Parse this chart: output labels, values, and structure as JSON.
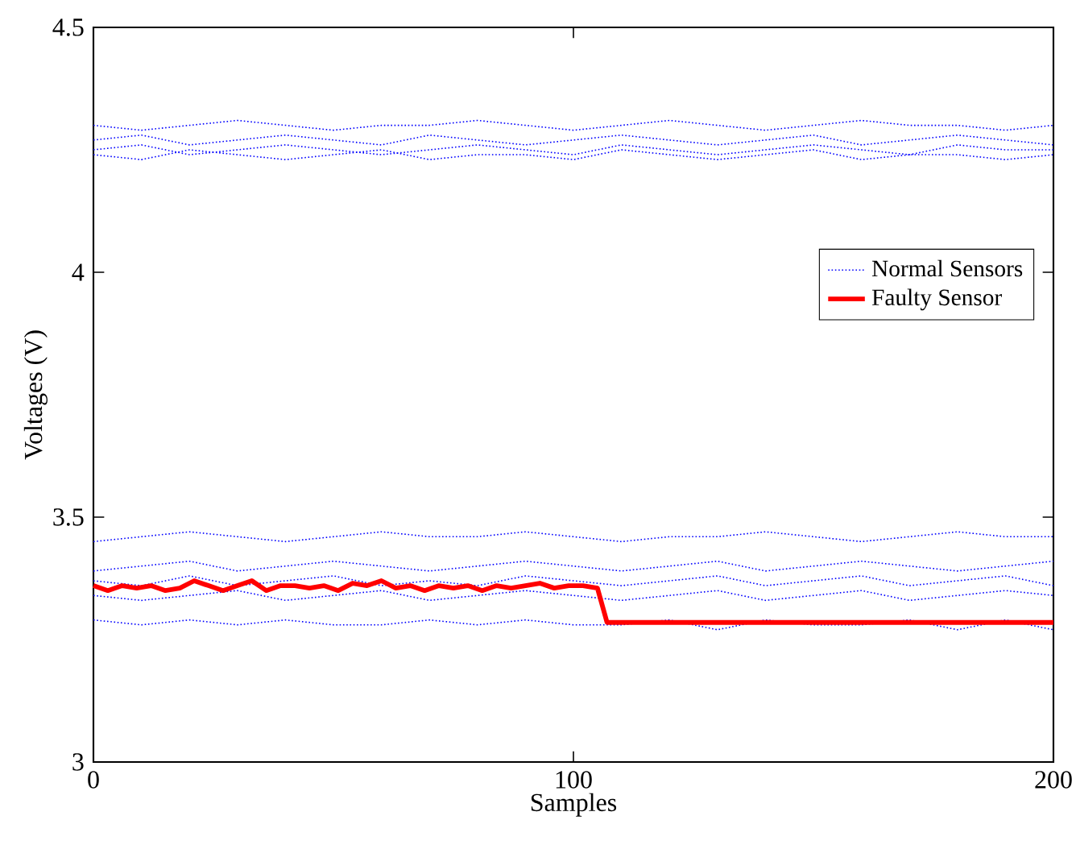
{
  "chart_data": {
    "type": "line",
    "xlabel": "Samples",
    "ylabel": "Voltages (V)",
    "xlim": [
      0,
      200
    ],
    "ylim": [
      3,
      4.5
    ],
    "xticks": [
      0,
      100,
      200
    ],
    "yticks": [
      3,
      3.5,
      4,
      4.5
    ],
    "legend": "right",
    "grid": false,
    "x": [
      0,
      10,
      20,
      30,
      40,
      50,
      60,
      70,
      80,
      90,
      100,
      110,
      120,
      130,
      140,
      150,
      160,
      170,
      180,
      190,
      200
    ],
    "series": [
      {
        "name": "Normal Sensors",
        "color": "#0000ff",
        "line_style": "dotted",
        "values": [
          4.3,
          4.29,
          4.3,
          4.31,
          4.3,
          4.29,
          4.3,
          4.3,
          4.31,
          4.3,
          4.29,
          4.3,
          4.31,
          4.3,
          4.29,
          4.3,
          4.31,
          4.3,
          4.3,
          4.29,
          4.3
        ]
      },
      {
        "color": "#0000ff",
        "line_style": "dotted",
        "values": [
          4.27,
          4.28,
          4.26,
          4.27,
          4.28,
          4.27,
          4.26,
          4.28,
          4.27,
          4.26,
          4.27,
          4.28,
          4.27,
          4.26,
          4.27,
          4.28,
          4.26,
          4.27,
          4.28,
          4.27,
          4.26
        ]
      },
      {
        "color": "#0000ff",
        "line_style": "dotted",
        "values": [
          4.25,
          4.26,
          4.24,
          4.25,
          4.26,
          4.25,
          4.24,
          4.25,
          4.26,
          4.25,
          4.24,
          4.26,
          4.25,
          4.24,
          4.25,
          4.26,
          4.25,
          4.24,
          4.26,
          4.25,
          4.25
        ]
      },
      {
        "color": "#0000ff",
        "line_style": "dotted",
        "values": [
          4.24,
          4.23,
          4.25,
          4.24,
          4.23,
          4.24,
          4.25,
          4.23,
          4.24,
          4.24,
          4.23,
          4.25,
          4.24,
          4.23,
          4.24,
          4.25,
          4.23,
          4.24,
          4.24,
          4.23,
          4.24
        ]
      },
      {
        "color": "#0000ff",
        "line_style": "dotted",
        "values": [
          3.45,
          3.46,
          3.47,
          3.46,
          3.45,
          3.46,
          3.47,
          3.46,
          3.46,
          3.47,
          3.46,
          3.45,
          3.46,
          3.46,
          3.47,
          3.46,
          3.45,
          3.46,
          3.47,
          3.46,
          3.46
        ]
      },
      {
        "color": "#0000ff",
        "line_style": "dotted",
        "values": [
          3.39,
          3.4,
          3.41,
          3.39,
          3.4,
          3.41,
          3.4,
          3.39,
          3.4,
          3.41,
          3.4,
          3.39,
          3.4,
          3.41,
          3.39,
          3.4,
          3.41,
          3.4,
          3.39,
          3.4,
          3.41
        ]
      },
      {
        "color": "#0000ff",
        "line_style": "dotted",
        "values": [
          3.37,
          3.36,
          3.38,
          3.36,
          3.37,
          3.38,
          3.36,
          3.37,
          3.36,
          3.38,
          3.37,
          3.36,
          3.37,
          3.38,
          3.36,
          3.37,
          3.38,
          3.36,
          3.37,
          3.38,
          3.36
        ]
      },
      {
        "color": "#0000ff",
        "line_style": "dotted",
        "values": [
          3.34,
          3.33,
          3.34,
          3.35,
          3.33,
          3.34,
          3.35,
          3.33,
          3.34,
          3.35,
          3.34,
          3.33,
          3.34,
          3.35,
          3.33,
          3.34,
          3.35,
          3.33,
          3.34,
          3.35,
          3.34
        ]
      },
      {
        "color": "#0000ff",
        "line_style": "dotted",
        "values": [
          3.29,
          3.28,
          3.29,
          3.28,
          3.29,
          3.28,
          3.28,
          3.29,
          3.28,
          3.29,
          3.28,
          3.28,
          3.29,
          3.27,
          3.29,
          3.28,
          3.28,
          3.29,
          3.27,
          3.29,
          3.27
        ]
      },
      {
        "name": "Faulty Sensor",
        "color": "#ff0000",
        "line_style": "solid",
        "x": [
          0,
          3,
          6,
          9,
          12,
          15,
          18,
          21,
          24,
          27,
          30,
          33,
          36,
          39,
          42,
          45,
          48,
          51,
          54,
          57,
          60,
          63,
          66,
          69,
          72,
          75,
          78,
          81,
          84,
          87,
          90,
          93,
          96,
          99,
          102,
          105,
          107,
          200
        ],
        "values": [
          3.36,
          3.35,
          3.36,
          3.355,
          3.36,
          3.35,
          3.355,
          3.37,
          3.36,
          3.35,
          3.36,
          3.37,
          3.35,
          3.36,
          3.36,
          3.355,
          3.36,
          3.35,
          3.365,
          3.36,
          3.37,
          3.355,
          3.36,
          3.35,
          3.36,
          3.355,
          3.36,
          3.35,
          3.36,
          3.355,
          3.36,
          3.365,
          3.355,
          3.36,
          3.36,
          3.355,
          3.285,
          3.285
        ]
      }
    ]
  }
}
